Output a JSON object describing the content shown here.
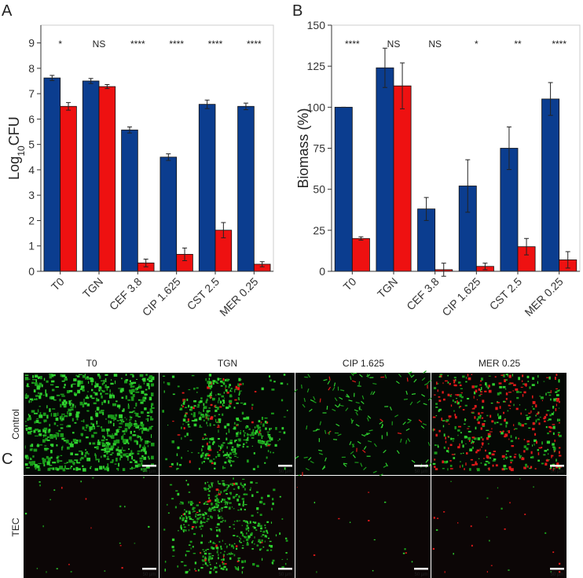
{
  "panel_letters": [
    "A",
    "B",
    "C"
  ],
  "chart_data": [
    {
      "type": "bar",
      "y_label": [
        "Log",
        "10",
        "CFU"
      ],
      "categories": [
        "T0",
        "TGN",
        "CEF 3.8",
        "CIP 1.625",
        "CST 2.5",
        "MER 0.25"
      ],
      "series": [
        {
          "color": "#0b3d8f",
          "values": [
            7.62,
            7.5,
            5.57,
            4.5,
            6.58,
            6.5
          ],
          "errors": [
            0.1,
            0.1,
            0.12,
            0.13,
            0.17,
            0.13
          ]
        },
        {
          "color": "#ee1111",
          "values": [
            6.5,
            7.28,
            0.33,
            0.67,
            1.62,
            0.28
          ],
          "errors": [
            0.15,
            0.08,
            0.15,
            0.25,
            0.3,
            0.1
          ]
        }
      ],
      "annotations": [
        "*",
        "NS",
        "****",
        "****",
        "****",
        "****"
      ],
      "ylim": [
        0,
        9.7
      ],
      "yticks": [
        0,
        1,
        2,
        3,
        4,
        5,
        6,
        7,
        8,
        9
      ]
    },
    {
      "type": "bar",
      "y_label": [
        "Biomass (%)"
      ],
      "categories": [
        "T0",
        "TGN",
        "CEF 3.8",
        "CIP 1.625",
        "CST 2.5",
        "MER 0.25"
      ],
      "series": [
        {
          "color": "#0b3d8f",
          "values": [
            100,
            124,
            38,
            52,
            75,
            105
          ],
          "errors": [
            0,
            12,
            7,
            16,
            13,
            10
          ]
        },
        {
          "color": "#ee1111",
          "values": [
            20,
            113,
            1,
            3,
            15,
            7
          ],
          "errors": [
            1,
            14,
            4,
            2,
            5,
            5
          ]
        }
      ],
      "annotations": [
        "****",
        "NS",
        "NS",
        "*",
        "**",
        "****"
      ],
      "ylim": [
        0,
        150
      ],
      "yticks": [
        0,
        25,
        50,
        75,
        100,
        125,
        150
      ]
    }
  ],
  "micrographs": {
    "columns": [
      "T0",
      "TGN",
      "CIP 1.625",
      "MER 0.25"
    ],
    "rows": [
      "Control",
      "TEC"
    ],
    "scale_bar": "50 µm"
  }
}
